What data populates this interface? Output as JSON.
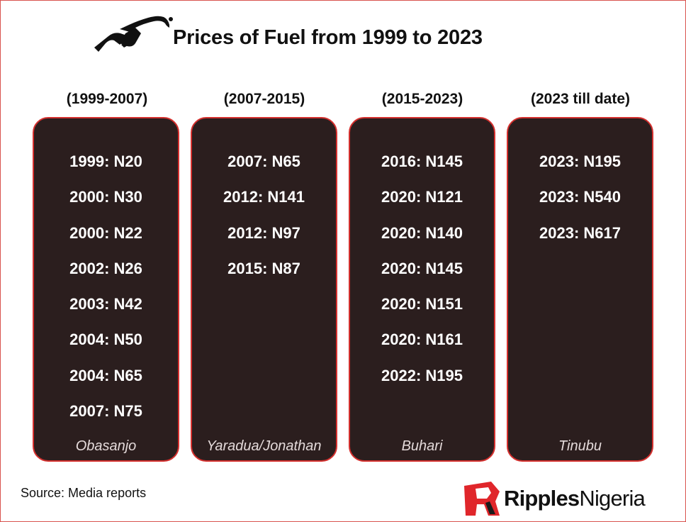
{
  "header": {
    "title": "Prices of Fuel from 1999 to 2023",
    "icon": "fuel-pump-nozzle-icon"
  },
  "periods": [
    {
      "label": "(1999-2007)",
      "leader": "Obasanjo",
      "prices": [
        "1999: N20",
        "2000: N30",
        "2000: N22",
        "2002: N26",
        "2003: N42",
        "2004: N50",
        "2004: N65",
        "2007: N75"
      ]
    },
    {
      "label": "(2007-2015)",
      "leader": "Yaradua/Jonathan",
      "prices": [
        "2007: N65",
        "2012: N141",
        "2012: N97",
        "2015: N87"
      ]
    },
    {
      "label": "(2015-2023)",
      "leader": "Buhari",
      "prices": [
        "2016: N145",
        "2020: N121",
        "2020: N140",
        "2020: N145",
        "2020: N151",
        "2020: N161",
        "2022: N195"
      ]
    },
    {
      "label": "(2023 till date)",
      "leader": "Tinubu",
      "prices": [
        "2023: N195",
        "2023: N540",
        "2023: N617"
      ]
    }
  ],
  "footer": {
    "source": "Source: Media reports",
    "brand_bold": "Ripples",
    "brand_regular": "Nigeria"
  },
  "colors": {
    "card_bg": "#2b1e1e",
    "card_border": "#d4302e",
    "brand_red": "#e0262b",
    "text_dark": "#111111"
  }
}
